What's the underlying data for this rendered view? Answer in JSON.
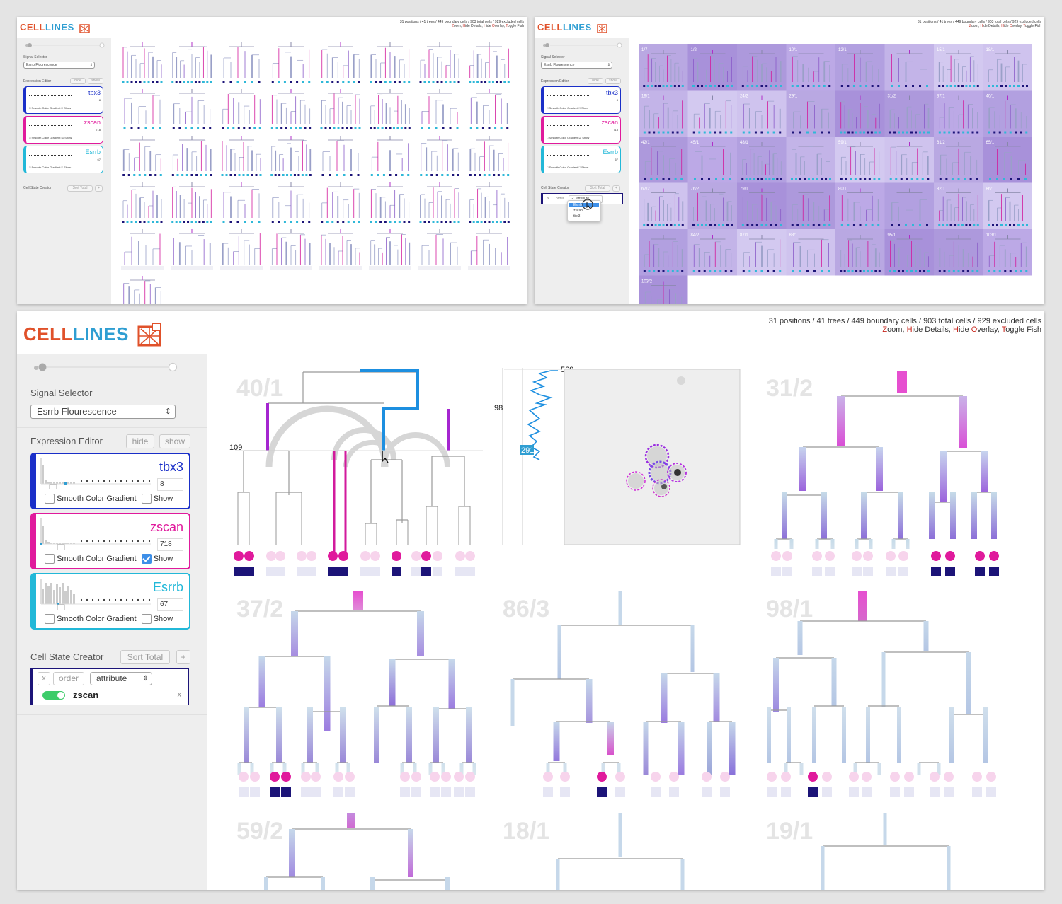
{
  "app": {
    "logo_cell": "CELL",
    "logo_lines": "LINES",
    "stats": "31 positions / 41 trees / 449 boundary cells / 903 total cells / 929 excluded cells",
    "actions": [
      {
        "key": "Z",
        "rest": "oom"
      },
      {
        "key": "H",
        "rest": "ide Details"
      },
      {
        "key": "H",
        "rest": "ide "
      },
      {
        "key": "O",
        "rest": "verlay"
      },
      {
        "key": "T",
        "rest": "oggle Fish"
      }
    ]
  },
  "sidebar": {
    "signal_selector_label": "Signal Selector",
    "signal_selector_value": "Esrrb Flourescence",
    "expression_editor_label": "Expression Editor",
    "hide_label": "hide",
    "show_label": "show",
    "markers": [
      {
        "name": "tbx3",
        "value": "8",
        "color": "#1a2fc8",
        "smooth_label": "Smooth Color Gradient",
        "show_label": "Show",
        "show_checked": false
      },
      {
        "name": "zscan",
        "value": "718",
        "color": "#e01a9c",
        "smooth_label": "Smooth Color Gradient",
        "show_label": "Show",
        "show_checked": true
      },
      {
        "name": "Esrrb",
        "value": "67",
        "color": "#22b8d8",
        "smooth_label": "Smooth Color Gradient",
        "show_label": "Show",
        "show_checked": false
      }
    ],
    "cell_state_creator_label": "Cell State Creator",
    "sort_total_label": "Sort Total",
    "add_label": "+",
    "state_row": {
      "x_label": "x",
      "order_label": "order",
      "attribute_label": "attribute",
      "toggle_on": true,
      "marker_name": "zscan",
      "remove_label": "x"
    },
    "dropdown_options": [
      "attribute",
      "Esrrb",
      "zscan",
      "tbx3"
    ]
  },
  "main": {
    "trees": [
      {
        "label": "40/1"
      },
      {
        "label": "31/2"
      },
      {
        "label": "37/2"
      },
      {
        "label": "86/3"
      },
      {
        "label": "98/1"
      },
      {
        "label": "59/2"
      },
      {
        "label": "18/1"
      },
      {
        "label": "19/1"
      }
    ],
    "trace_labels": {
      "top": "569",
      "mid": "98",
      "low": "291",
      "axis": "109"
    }
  },
  "top_right_labels": [
    "1/7",
    "1/2",
    "",
    "10/1",
    "12/1",
    "",
    "15/1",
    "18/1",
    "19/1",
    "",
    "24/2",
    "29/1",
    "",
    "31/2",
    "37/1",
    "40/1",
    "42/1",
    "45/1",
    "48/1",
    "",
    "59/1",
    "",
    "61/2",
    "65/1",
    "67/2",
    "76/2",
    "79/1",
    "",
    "80/1",
    "",
    "82/1",
    "86/1",
    "",
    "84/2",
    "87/1",
    "88/1",
    "",
    "95/1",
    "",
    "103/1",
    "103/2"
  ],
  "colors": {
    "accent_blue": "#2f9ed2",
    "accent_red": "#e0512a",
    "magenta": "#e01a9c",
    "navy": "#1c1478",
    "purple": "#8a5cc8",
    "grid_purple": "#b8a8e0"
  }
}
